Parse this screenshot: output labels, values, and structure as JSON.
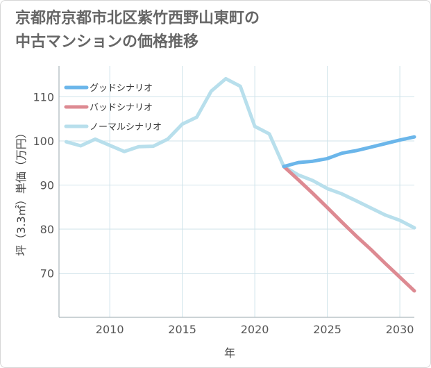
{
  "title": {
    "line1": "京都府京都市北区紫竹西野山東町の",
    "line2": "中古マンションの価格推移"
  },
  "chart_data": {
    "type": "line",
    "title": "京都府京都市北区紫竹西野山東町の中古マンションの価格推移",
    "xlabel": "年",
    "ylabel": "坪（3.3㎡）単価（万円）",
    "xlim": [
      2006.5,
      2031
    ],
    "ylim": [
      60,
      117
    ],
    "x_ticks": [
      2010,
      2015,
      2020,
      2025,
      2030
    ],
    "y_ticks": [
      70,
      80,
      90,
      100,
      110
    ],
    "grid": true,
    "legend_position": "top-left",
    "series": [
      {
        "name": "グッドシナリオ",
        "color": "#6bb6ea",
        "x": [
          2022,
          2023,
          2024,
          2025,
          2026,
          2027,
          2028,
          2029,
          2030,
          2031
        ],
        "values": [
          94.2,
          95.1,
          95.4,
          96.0,
          97.2,
          97.8,
          98.6,
          99.4,
          100.2,
          100.9
        ]
      },
      {
        "name": "バッドシナリオ",
        "color": "#dd8a92",
        "x": [
          2022,
          2023,
          2024,
          2025,
          2026,
          2027,
          2028,
          2029,
          2030,
          2031
        ],
        "values": [
          94.2,
          91.2,
          88.1,
          84.9,
          81.6,
          78.4,
          75.4,
          72.2,
          69.1,
          66.0
        ]
      },
      {
        "name": "ノーマルシナリオ",
        "color": "#b8dfec",
        "x": [
          2007,
          2008,
          2009,
          2010,
          2011,
          2012,
          2013,
          2014,
          2015,
          2016,
          2017,
          2018,
          2019,
          2020,
          2021,
          2022,
          2023,
          2024,
          2025,
          2026,
          2027,
          2028,
          2029,
          2030,
          2031
        ],
        "values": [
          99.8,
          98.9,
          100.4,
          99.0,
          97.6,
          98.7,
          98.8,
          100.4,
          103.8,
          105.4,
          111.3,
          114.1,
          112.4,
          103.3,
          101.6,
          94.2,
          92.3,
          91.0,
          89.2,
          88.0,
          86.4,
          84.8,
          83.2,
          82.0,
          80.3
        ]
      }
    ]
  }
}
